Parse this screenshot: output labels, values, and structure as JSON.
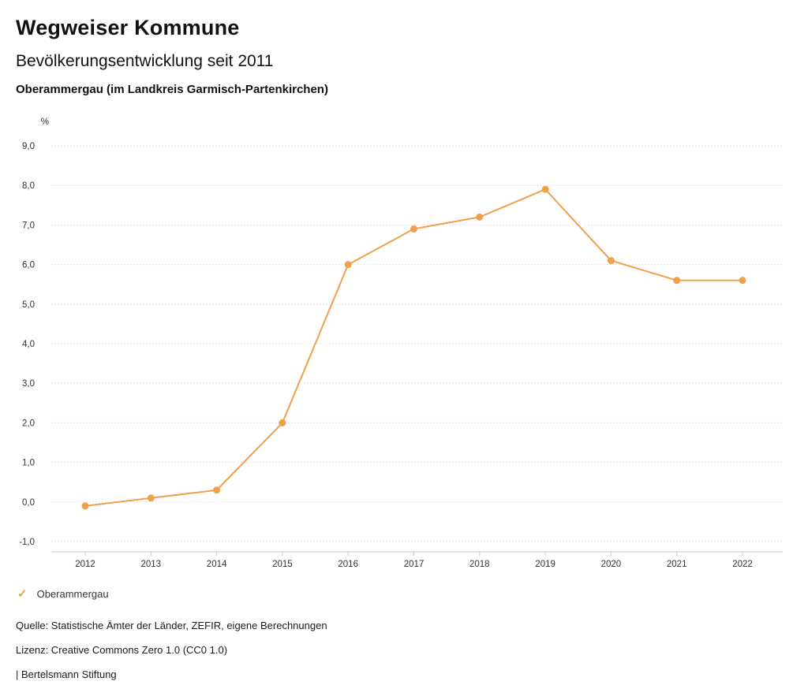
{
  "header": {
    "brand": "Wegweiser Kommune",
    "title": "Bevölkerungsentwicklung seit 2011",
    "subtitle": "Oberammergau (im Landkreis Garmisch-Partenkirchen)"
  },
  "chart_data": {
    "type": "line",
    "title": "Bevölkerungsentwicklung seit 2011",
    "subtitle": "Oberammergau (im Landkreis Garmisch-Partenkirchen)",
    "unit_label": "%",
    "categories": [
      "2012",
      "2013",
      "2014",
      "2015",
      "2016",
      "2017",
      "2018",
      "2019",
      "2020",
      "2021",
      "2022"
    ],
    "series": [
      {
        "name": "Oberammergau",
        "values": [
          -0.1,
          0.1,
          0.3,
          2.0,
          6.0,
          6.9,
          7.2,
          7.9,
          6.1,
          5.6,
          5.6
        ],
        "color": "#F0A04B"
      }
    ],
    "xlabel": "",
    "ylabel": "%",
    "ylim": [
      -1.0,
      9.0
    ],
    "ytick_step": 1.0,
    "grid": true,
    "grid_style": "dotted",
    "legend_position": "bottom-left",
    "colors": {
      "line": "#F0A04B",
      "gridline": "#cccccc",
      "axis": "#c8c8c8",
      "tick_text": "#333333"
    }
  },
  "legend": {
    "items": [
      {
        "label": "Oberammergau",
        "color": "#F0A04B",
        "icon": "check"
      }
    ]
  },
  "footer": {
    "source": "Quelle: Statistische Ämter der Länder, ZEFIR, eigene Berechnungen",
    "license": "Lizenz: Creative Commons Zero 1.0 (CC0 1.0)",
    "attribution": "| Bertelsmann Stiftung"
  }
}
